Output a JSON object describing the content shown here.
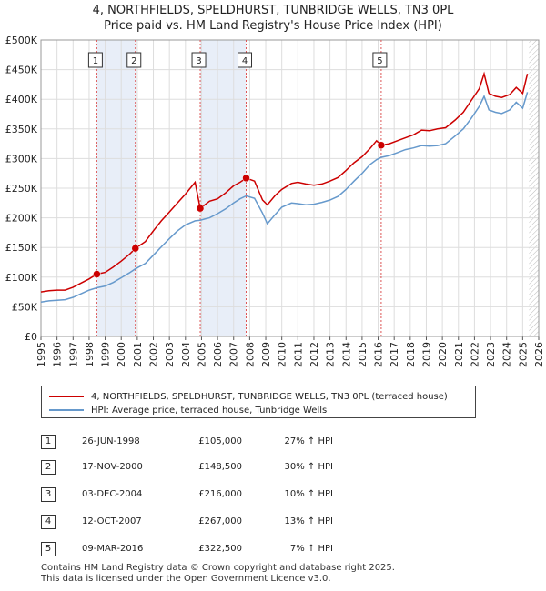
{
  "chart_data": {
    "type": "line",
    "title": "4, NORTHFIELDS, SPELDHURST, TUNBRIDGE WELLS, TN3 0PL",
    "subtitle": "Price paid vs. HM Land Registry's House Price Index (HPI)",
    "xlim": [
      1995,
      2026
    ],
    "ylim": [
      0,
      500000
    ],
    "x_ticks": [
      "1995",
      "1996",
      "1997",
      "1998",
      "1999",
      "2000",
      "2001",
      "2002",
      "2003",
      "2004",
      "2005",
      "2006",
      "2007",
      "2008",
      "2009",
      "2010",
      "2011",
      "2012",
      "2013",
      "2014",
      "2015",
      "2016",
      "2017",
      "2018",
      "2019",
      "2020",
      "2021",
      "2022",
      "2023",
      "2024",
      "2025",
      "2026"
    ],
    "y_ticks": [
      {
        "v": 0,
        "label": "£0"
      },
      {
        "v": 50000,
        "label": "£50K"
      },
      {
        "v": 100000,
        "label": "£100K"
      },
      {
        "v": 150000,
        "label": "£150K"
      },
      {
        "v": 200000,
        "label": "£200K"
      },
      {
        "v": 250000,
        "label": "£250K"
      },
      {
        "v": 300000,
        "label": "£300K"
      },
      {
        "v": 350000,
        "label": "£350K"
      },
      {
        "v": 400000,
        "label": "£400K"
      },
      {
        "v": 450000,
        "label": "£450K"
      },
      {
        "v": 500000,
        "label": "£500K"
      }
    ],
    "grid": true,
    "legend_position": "below",
    "series": [
      {
        "name": "4, NORTHFIELDS, SPELDHURST, TUNBRIDGE WELLS, TN3 0PL (terraced house)",
        "color": "#cc0000",
        "points": [
          [
            1995.0,
            75000
          ],
          [
            1995.5,
            77000
          ],
          [
            1996.0,
            78000
          ],
          [
            1996.5,
            78000
          ],
          [
            1997.0,
            83000
          ],
          [
            1997.5,
            90000
          ],
          [
            1998.0,
            97000
          ],
          [
            1998.48,
            105000
          ],
          [
            1999.0,
            108000
          ],
          [
            1999.5,
            117000
          ],
          [
            2000.0,
            127000
          ],
          [
            2000.5,
            138000
          ],
          [
            2000.88,
            148500
          ],
          [
            2001.5,
            160000
          ],
          [
            2002.0,
            178000
          ],
          [
            2002.5,
            195000
          ],
          [
            2003.0,
            210000
          ],
          [
            2003.5,
            225000
          ],
          [
            2004.0,
            240000
          ],
          [
            2004.6,
            260000
          ],
          [
            2004.92,
            216000
          ],
          [
            2005.2,
            222000
          ],
          [
            2005.5,
            228000
          ],
          [
            2006.0,
            232000
          ],
          [
            2006.5,
            242000
          ],
          [
            2007.0,
            254000
          ],
          [
            2007.4,
            260000
          ],
          [
            2007.78,
            267000
          ],
          [
            2008.3,
            262000
          ],
          [
            2008.8,
            230000
          ],
          [
            2009.1,
            222000
          ],
          [
            2009.6,
            238000
          ],
          [
            2010.0,
            248000
          ],
          [
            2010.6,
            258000
          ],
          [
            2011.0,
            260000
          ],
          [
            2011.5,
            257000
          ],
          [
            2012.0,
            255000
          ],
          [
            2012.5,
            257000
          ],
          [
            2013.0,
            262000
          ],
          [
            2013.5,
            268000
          ],
          [
            2014.0,
            280000
          ],
          [
            2014.5,
            293000
          ],
          [
            2015.0,
            303000
          ],
          [
            2015.5,
            317000
          ],
          [
            2015.9,
            330000
          ],
          [
            2016.19,
            322500
          ],
          [
            2016.7,
            325000
          ],
          [
            2017.2,
            330000
          ],
          [
            2017.7,
            335000
          ],
          [
            2018.2,
            340000
          ],
          [
            2018.7,
            348000
          ],
          [
            2019.2,
            347000
          ],
          [
            2019.7,
            350000
          ],
          [
            2020.2,
            352000
          ],
          [
            2020.8,
            365000
          ],
          [
            2021.3,
            378000
          ],
          [
            2021.8,
            398000
          ],
          [
            2022.3,
            418000
          ],
          [
            2022.6,
            443000
          ],
          [
            2022.9,
            410000
          ],
          [
            2023.3,
            405000
          ],
          [
            2023.7,
            403000
          ],
          [
            2024.2,
            408000
          ],
          [
            2024.6,
            420000
          ],
          [
            2025.0,
            410000
          ],
          [
            2025.3,
            443000
          ]
        ]
      },
      {
        "name": "HPI: Average price, terraced house, Tunbridge Wells",
        "color": "#6699cc",
        "points": [
          [
            1995.0,
            58000
          ],
          [
            1995.5,
            60000
          ],
          [
            1996.0,
            61000
          ],
          [
            1996.5,
            62000
          ],
          [
            1997.0,
            66000
          ],
          [
            1997.5,
            72000
          ],
          [
            1998.0,
            78000
          ],
          [
            1998.48,
            82000
          ],
          [
            1999.0,
            85000
          ],
          [
            1999.5,
            91000
          ],
          [
            2000.0,
            99000
          ],
          [
            2000.5,
            107000
          ],
          [
            2000.88,
            114000
          ],
          [
            2001.5,
            123000
          ],
          [
            2002.0,
            137000
          ],
          [
            2002.5,
            151000
          ],
          [
            2003.0,
            165000
          ],
          [
            2003.5,
            178000
          ],
          [
            2004.0,
            188000
          ],
          [
            2004.6,
            195000
          ],
          [
            2004.92,
            196000
          ],
          [
            2005.2,
            198000
          ],
          [
            2005.5,
            200000
          ],
          [
            2006.0,
            207000
          ],
          [
            2006.5,
            215000
          ],
          [
            2007.0,
            225000
          ],
          [
            2007.4,
            232000
          ],
          [
            2007.78,
            237000
          ],
          [
            2008.3,
            233000
          ],
          [
            2008.8,
            208000
          ],
          [
            2009.1,
            190000
          ],
          [
            2009.6,
            206000
          ],
          [
            2010.0,
            218000
          ],
          [
            2010.6,
            225000
          ],
          [
            2011.0,
            224000
          ],
          [
            2011.5,
            222000
          ],
          [
            2012.0,
            223000
          ],
          [
            2012.5,
            226000
          ],
          [
            2013.0,
            230000
          ],
          [
            2013.5,
            236000
          ],
          [
            2014.0,
            248000
          ],
          [
            2014.5,
            262000
          ],
          [
            2015.0,
            275000
          ],
          [
            2015.5,
            290000
          ],
          [
            2015.9,
            298000
          ],
          [
            2016.19,
            302000
          ],
          [
            2016.7,
            305000
          ],
          [
            2017.2,
            310000
          ],
          [
            2017.7,
            315000
          ],
          [
            2018.2,
            318000
          ],
          [
            2018.7,
            322000
          ],
          [
            2019.2,
            321000
          ],
          [
            2019.7,
            322000
          ],
          [
            2020.2,
            325000
          ],
          [
            2020.8,
            338000
          ],
          [
            2021.3,
            350000
          ],
          [
            2021.8,
            368000
          ],
          [
            2022.3,
            388000
          ],
          [
            2022.6,
            405000
          ],
          [
            2022.9,
            382000
          ],
          [
            2023.3,
            378000
          ],
          [
            2023.7,
            376000
          ],
          [
            2024.2,
            382000
          ],
          [
            2024.6,
            395000
          ],
          [
            2025.0,
            385000
          ],
          [
            2025.3,
            412000
          ]
        ]
      }
    ],
    "sales": [
      {
        "num": "1",
        "x": 1998.48,
        "price": 105000
      },
      {
        "num": "2",
        "x": 2000.88,
        "price": 148500
      },
      {
        "num": "3",
        "x": 2004.92,
        "price": 216000
      },
      {
        "num": "4",
        "x": 2007.78,
        "price": 267000
      },
      {
        "num": "5",
        "x": 2016.19,
        "price": 322500
      }
    ],
    "shaded_ranges": [
      [
        1998.48,
        2000.88
      ],
      [
        2004.92,
        2007.78
      ]
    ],
    "forecast_start": 2025.4
  },
  "legend": {
    "red_label": "4, NORTHFIELDS, SPELDHURST, TUNBRIDGE WELLS, TN3 0PL (terraced house)",
    "blue_label": "HPI: Average price, terraced house, Tunbridge Wells",
    "red_color": "#cc0000",
    "blue_color": "#6699cc"
  },
  "transactions": [
    {
      "num": "1",
      "date": "26-JUN-1998",
      "price": "£105,000",
      "hpi": "27% ↑ HPI"
    },
    {
      "num": "2",
      "date": "17-NOV-2000",
      "price": "£148,500",
      "hpi": "30% ↑ HPI"
    },
    {
      "num": "3",
      "date": "03-DEC-2004",
      "price": "£216,000",
      "hpi": "10% ↑ HPI"
    },
    {
      "num": "4",
      "date": "12-OCT-2007",
      "price": "£267,000",
      "hpi": "13% ↑ HPI"
    },
    {
      "num": "5",
      "date": "09-MAR-2016",
      "price": "£322,500",
      "hpi": "7% ↑ HPI"
    }
  ],
  "footer": {
    "line1": "Contains HM Land Registry data © Crown copyright and database right 2025.",
    "line2": "This data is licensed under the Open Government Licence v3.0."
  }
}
